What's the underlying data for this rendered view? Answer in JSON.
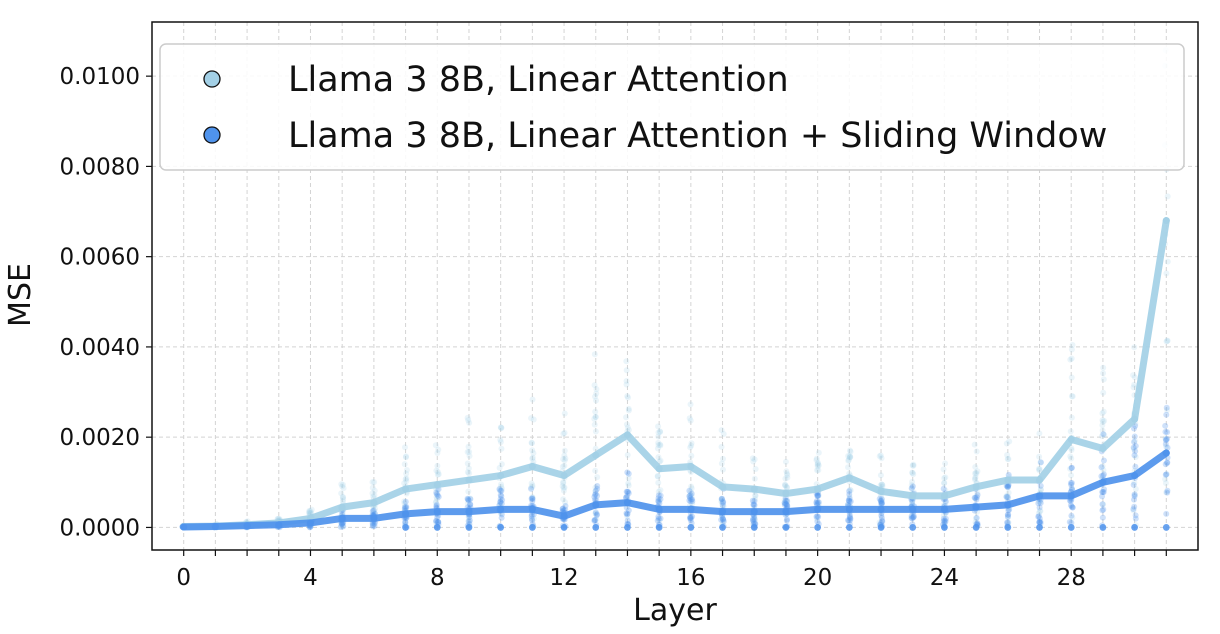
{
  "chart_data": {
    "type": "line",
    "title": "",
    "xlabel": "Layer",
    "ylabel": "MSE",
    "xlim": [
      -1,
      32
    ],
    "ylim": [
      -0.0005,
      0.0112
    ],
    "x_ticks": [
      0,
      4,
      8,
      12,
      16,
      20,
      24,
      28
    ],
    "x_tick_labels": [
      "0",
      "4",
      "8",
      "12",
      "16",
      "20",
      "24",
      "28"
    ],
    "y_ticks": [
      0.0,
      0.002,
      0.004,
      0.006,
      0.008,
      0.01
    ],
    "y_tick_labels": [
      "0.0000",
      "0.0020",
      "0.0040",
      "0.0060",
      "0.0080",
      "0.0100"
    ],
    "grid": true,
    "legend_position": "top-left",
    "series": [
      {
        "name": "Llama 3 8B, Linear Attention",
        "color": "#a3d0e6",
        "x": [
          0,
          1,
          2,
          3,
          4,
          5,
          6,
          7,
          8,
          9,
          10,
          11,
          12,
          13,
          14,
          15,
          16,
          17,
          18,
          19,
          20,
          21,
          22,
          23,
          24,
          25,
          26,
          27,
          28,
          29,
          30,
          31
        ],
        "values": [
          2e-05,
          3e-05,
          6e-05,
          0.0001,
          0.0002,
          0.00045,
          0.00055,
          0.00085,
          0.00095,
          0.00105,
          0.00115,
          0.00135,
          0.00115,
          0.0016,
          0.00205,
          0.0013,
          0.00135,
          0.0009,
          0.00085,
          0.00075,
          0.00085,
          0.0011,
          0.0008,
          0.0007,
          0.0007,
          0.0009,
          0.00105,
          0.00105,
          0.00195,
          0.00175,
          0.0024,
          0.0068
        ]
      },
      {
        "name": "Llama 3 8B, Linear Attention + Sliding Window",
        "color": "#4f93ec",
        "x": [
          0,
          1,
          2,
          3,
          4,
          5,
          6,
          7,
          8,
          9,
          10,
          11,
          12,
          13,
          14,
          15,
          16,
          17,
          18,
          19,
          20,
          21,
          22,
          23,
          24,
          25,
          26,
          27,
          28,
          29,
          30,
          31
        ],
        "values": [
          1e-05,
          2e-05,
          4e-05,
          6e-05,
          0.0001,
          0.0002,
          0.0002,
          0.0003,
          0.00035,
          0.00035,
          0.0004,
          0.0004,
          0.00025,
          0.0005,
          0.00055,
          0.0004,
          0.0004,
          0.00035,
          0.00035,
          0.00035,
          0.0004,
          0.0004,
          0.0004,
          0.0004,
          0.0004,
          0.00045,
          0.0005,
          0.0007,
          0.0007,
          0.001,
          0.00115,
          0.00165
        ]
      }
    ]
  }
}
